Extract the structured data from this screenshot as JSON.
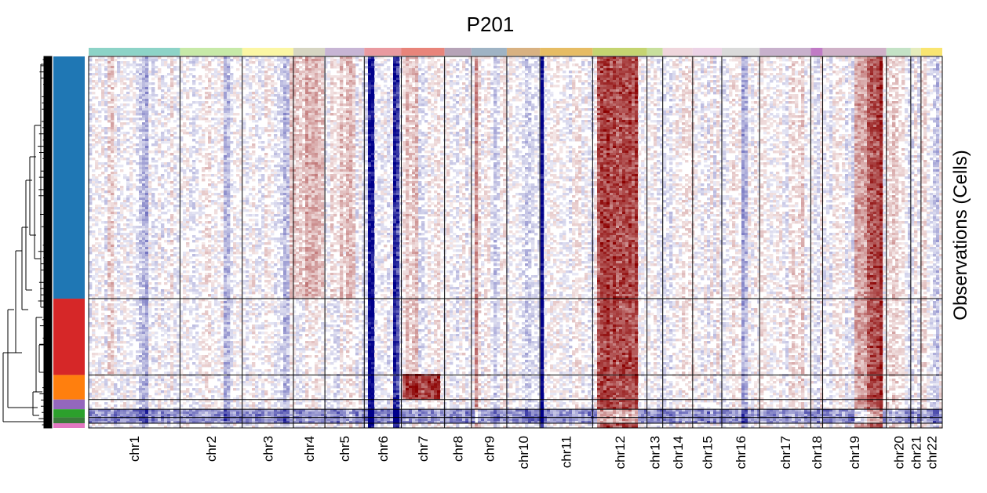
{
  "chart_data": {
    "type": "heatmap",
    "title": "P201",
    "ylabel": "Observations (Cells)",
    "xlabel": "",
    "colorscale": {
      "low": "#00008b",
      "mid": "#ffffff",
      "high": "#8b0000"
    },
    "chromosomes": [
      {
        "name": "chr1",
        "len": 116,
        "color": "#8dd3c7"
      },
      {
        "name": "chr2",
        "len": 79,
        "color": "#c7e9a8"
      },
      {
        "name": "chr3",
        "len": 65,
        "color": "#fbf6a4"
      },
      {
        "name": "chr4",
        "len": 40,
        "color": "#d6d5c2"
      },
      {
        "name": "chr5",
        "len": 50,
        "color": "#c7b5d4"
      },
      {
        "name": "chr6",
        "len": 47,
        "color": "#e99aa0"
      },
      {
        "name": "chr7",
        "len": 55,
        "color": "#e8847a"
      },
      {
        "name": "chr8",
        "len": 34,
        "color": "#b6a3b7"
      },
      {
        "name": "chr9",
        "len": 45,
        "color": "#9fb3c4"
      },
      {
        "name": "chr10",
        "len": 42,
        "color": "#d8b182"
      },
      {
        "name": "chr11",
        "len": 67,
        "color": "#e6bc64"
      },
      {
        "name": "chr12",
        "len": 69,
        "color": "#c5d471"
      },
      {
        "name": "chr13",
        "len": 20,
        "color": "#c8df9d"
      },
      {
        "name": "chr14",
        "len": 38,
        "color": "#efd6dc"
      },
      {
        "name": "chr15",
        "len": 37,
        "color": "#ecd3e6"
      },
      {
        "name": "chr16",
        "len": 48,
        "color": "#dadada"
      },
      {
        "name": "chr17",
        "len": 65,
        "color": "#c8b1cc"
      },
      {
        "name": "chr18",
        "len": 15,
        "color": "#c07bc5"
      },
      {
        "name": "chr19",
        "len": 81,
        "color": "#cfb1c7"
      },
      {
        "name": "chr20",
        "len": 31,
        "color": "#c4e2c6"
      },
      {
        "name": "chr21",
        "len": 13,
        "color": "#e5ecbd"
      },
      {
        "name": "chr22",
        "len": 27,
        "color": "#f9e571"
      }
    ],
    "cell_groups": [
      {
        "size": 0.622,
        "color": "#1f77b4"
      },
      {
        "size": 0.196,
        "color": "#d62728"
      },
      {
        "size": 0.063,
        "color": "#ff7f0e"
      },
      {
        "size": 0.025,
        "color": "#9467bd"
      },
      {
        "size": 0.021,
        "color": "#2ca02c"
      },
      {
        "size": 0.015,
        "color": "#3b7a3b"
      },
      {
        "size": 0.012,
        "color": "#e377c2"
      }
    ],
    "signals": [
      {
        "chr": "chr6",
        "from": 0.12,
        "to": 0.3,
        "value": -1.0,
        "groups": "all"
      },
      {
        "chr": "chr6",
        "from": 0.74,
        "to": 0.92,
        "value": -0.85,
        "groups": "all"
      },
      {
        "chr": "chr6",
        "from": 0.3,
        "to": 0.74,
        "value": -0.1,
        "groups": "all"
      },
      {
        "chr": "chr11",
        "from": 0.0,
        "to": 0.06,
        "value": -1.0,
        "groups": "all"
      },
      {
        "chr": "chr12",
        "from": 0.1,
        "to": 0.85,
        "value": 0.8,
        "groups": "all"
      },
      {
        "chr": "chr19",
        "from": 0.5,
        "to": 0.72,
        "value": 0.5,
        "groups": "all"
      },
      {
        "chr": "chr19",
        "from": 0.72,
        "to": 0.92,
        "value": 0.8,
        "groups": "all"
      },
      {
        "chr": "chr7",
        "from": 0.0,
        "to": 0.88,
        "value": 0.82,
        "groups": [
          2
        ]
      },
      {
        "chr": "chr7",
        "from": 0.05,
        "to": 0.4,
        "value": 0.18,
        "groups": [
          0,
          1
        ]
      },
      {
        "chr": "chr4",
        "from": 0.0,
        "to": 1.0,
        "value": 0.25,
        "groups": [
          0
        ]
      },
      {
        "chr": "chr5",
        "from": 0.1,
        "to": 0.8,
        "value": 0.18,
        "groups": [
          0
        ]
      },
      {
        "chr": "chr1",
        "from": 0.55,
        "to": 0.65,
        "value": -0.25,
        "groups": "all"
      },
      {
        "chr": "chr1",
        "from": 0.78,
        "to": 0.84,
        "value": -0.22,
        "groups": "all"
      },
      {
        "chr": "chr1",
        "from": 0.22,
        "to": 0.3,
        "value": 0.14,
        "groups": [
          0,
          1
        ]
      },
      {
        "chr": "chr2",
        "from": 0.3,
        "to": 0.5,
        "value": 0.12,
        "groups": "all"
      },
      {
        "chr": "chr2",
        "from": 0.72,
        "to": 0.8,
        "value": -0.18,
        "groups": "all"
      },
      {
        "chr": "chr3",
        "from": 0.8,
        "to": 0.9,
        "value": -0.25,
        "groups": "all"
      },
      {
        "chr": "chr3",
        "from": 0.92,
        "to": 1.0,
        "value": 0.2,
        "groups": [
          0
        ]
      },
      {
        "chr": "chr9",
        "from": 0.1,
        "to": 0.2,
        "value": 0.35,
        "groups": "all"
      },
      {
        "chr": "chr9",
        "from": 0.6,
        "to": 0.7,
        "value": -0.12,
        "groups": "all"
      },
      {
        "chr": "chr10",
        "from": 0.55,
        "to": 0.7,
        "value": -0.15,
        "groups": "all"
      },
      {
        "chr": "chr16",
        "from": 0.55,
        "to": 0.72,
        "value": -0.3,
        "groups": "all"
      },
      {
        "chr": "chr17",
        "from": 0.6,
        "to": 0.85,
        "value": 0.12,
        "groups": "all"
      },
      {
        "chr": "chr14",
        "from": 0.2,
        "to": 0.4,
        "value": -0.12,
        "groups": "all"
      },
      {
        "chr": "chr22",
        "from": 0.3,
        "to": 0.8,
        "value": -0.15,
        "groups": "all"
      },
      {
        "chr": "chr20",
        "from": 0.0,
        "to": 0.6,
        "value": 0.12,
        "groups": "all"
      },
      {
        "chr": "all",
        "from": 0.0,
        "to": 1.0,
        "value": -0.45,
        "groups": [
          4,
          5
        ]
      }
    ]
  }
}
